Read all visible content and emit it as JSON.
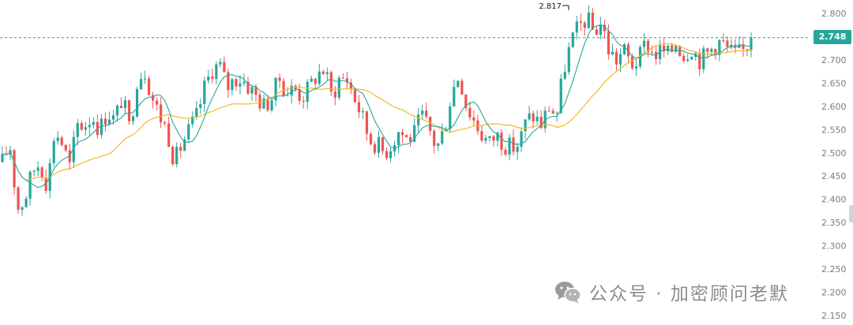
{
  "chart_data": {
    "type": "candlestick",
    "ylim": [
      2.15,
      2.8
    ],
    "y_ticks": [
      "2.800",
      "2.750",
      "2.700",
      "2.650",
      "2.600",
      "2.550",
      "2.500",
      "2.450",
      "2.400",
      "2.350",
      "2.300",
      "2.250",
      "2.200",
      "2.150"
    ],
    "last_price": "2.748",
    "high_marker": "2.817",
    "grid": false,
    "series": [
      {
        "kind": "candles",
        "path": [
          2.48,
          2.52,
          2.38,
          2.4,
          2.46,
          2.48,
          2.43,
          2.55,
          2.52,
          2.47,
          2.56,
          2.56,
          2.58,
          2.55,
          2.59,
          2.57,
          2.62,
          2.55,
          2.66,
          2.68,
          2.62,
          2.58,
          2.55,
          2.48,
          2.52,
          2.55,
          2.58,
          2.64,
          2.68,
          2.69,
          2.64,
          2.66,
          2.66,
          2.64,
          2.62,
          2.6,
          2.62,
          2.66,
          2.63,
          2.64,
          2.62,
          2.64,
          2.67,
          2.68,
          2.62,
          2.66,
          2.66,
          2.62,
          2.58,
          2.53,
          2.52,
          2.5,
          2.52,
          2.55,
          2.53,
          2.54,
          2.58,
          2.55,
          2.51,
          2.55,
          2.63,
          2.67,
          2.6,
          2.57,
          2.54,
          2.52,
          2.54,
          2.52,
          2.51,
          2.52,
          2.57,
          2.58,
          2.56,
          2.6,
          2.58,
          2.68,
          2.74,
          2.77,
          2.79,
          2.76,
          2.78,
          2.72,
          2.7,
          2.72,
          2.69,
          2.7,
          2.74,
          2.71,
          2.72,
          2.71,
          2.74,
          2.71,
          2.73,
          2.7,
          2.71,
          2.73,
          2.74,
          2.72,
          2.71,
          2.72,
          2.75
        ]
      },
      {
        "kind": "fast-ma",
        "color": "#26a69a"
      },
      {
        "kind": "slow-ma",
        "color": "#f5b825"
      }
    ]
  },
  "watermark": {
    "text": "公众号 · 加密顾问老默",
    "icon": "wechat-icon"
  },
  "colors": {
    "up": "#26a69a",
    "down": "#ef5350",
    "fast_ma": "#26a69a",
    "slow_ma": "#f5b825",
    "axis_text": "#787b86"
  }
}
